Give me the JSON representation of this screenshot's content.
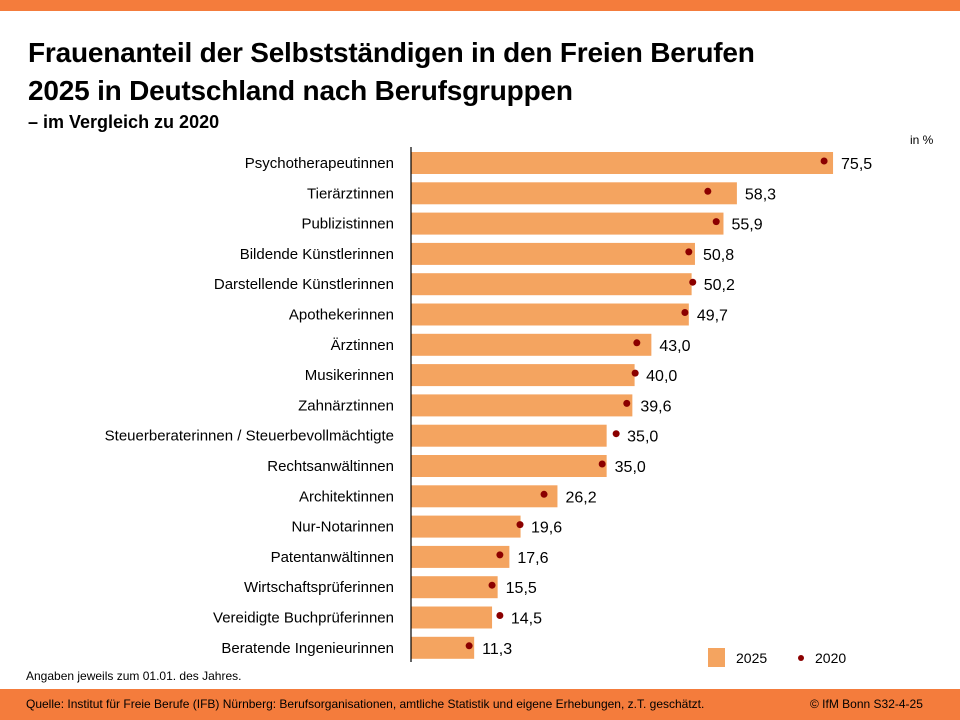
{
  "header": {
    "title_line1": "Frauenanteil der Selbstständigen in den Freien Berufen",
    "title_line2": "2025 in Deutschland nach Berufsgruppen",
    "subtitle": "– im Vergleich zu 2020",
    "unit": "in %"
  },
  "colors": {
    "accent": "#f47c3c",
    "bar": "#f4a460",
    "dot": "#8b0000"
  },
  "chart_data": {
    "type": "bar",
    "orientation": "horizontal",
    "title": "Frauenanteil der Selbstständigen in den Freien Berufen 2025 in Deutschland nach Berufsgruppen – im Vergleich zu 2020",
    "xlabel": "",
    "ylabel": "",
    "unit": "in %",
    "xlim": [
      0,
      80
    ],
    "grid": false,
    "legend_position": "bottom-right",
    "categories": [
      "Psychotherapeutinnen",
      "Tierärztinnen",
      "Publizistinnen",
      "Bildende Künstlerinnen",
      "Darstellende Künstlerinnen",
      "Apothekerinnen",
      "Ärztinnen",
      "Musikerinnen",
      "Zahnärztinnen",
      "Steuerberaterinnen / Steuerbevollmächtigte",
      "Rechtsanwältinnen",
      "Architektinnen",
      "Nur-Notarinnen",
      "Patentanwältinnen",
      "Wirtschaftsprüferinnen",
      "Vereidigte Buchprüferinnen",
      "Beratende Ingenieurinnen"
    ],
    "series": [
      {
        "name": "2025",
        "type": "bar",
        "values": [
          75.5,
          58.3,
          55.9,
          50.8,
          50.2,
          49.7,
          43.0,
          40.0,
          39.6,
          35.0,
          35.0,
          26.2,
          19.6,
          17.6,
          15.5,
          14.5,
          11.3
        ],
        "labels": [
          "75,5",
          "58,3",
          "55,9",
          "50,8",
          "50,2",
          "49,7",
          "43,0",
          "40,0",
          "39,6",
          "35,0",
          "35,0",
          "26,2",
          "19,6",
          "17,6",
          "15,5",
          "14,5",
          "11,3"
        ]
      },
      {
        "name": "2020",
        "type": "scatter",
        "values": [
          73.9,
          53.1,
          54.6,
          49.7,
          50.4,
          49.0,
          40.4,
          40.1,
          38.6,
          36.7,
          34.2,
          23.8,
          19.5,
          15.9,
          14.5,
          15.9,
          10.4
        ]
      }
    ]
  },
  "legend": {
    "label_2025": "2025",
    "label_2020": "2020"
  },
  "footer": {
    "note": "Angaben jeweils zum 01.01. des Jahres.",
    "source": "Quelle: Institut für Freie Berufe (IFB) Nürnberg: Berufsorganisationen, amtliche Statistik und eigene Erhebungen, z.T. geschätzt.",
    "copyright": "© IfM Bonn  S32-4-25"
  }
}
